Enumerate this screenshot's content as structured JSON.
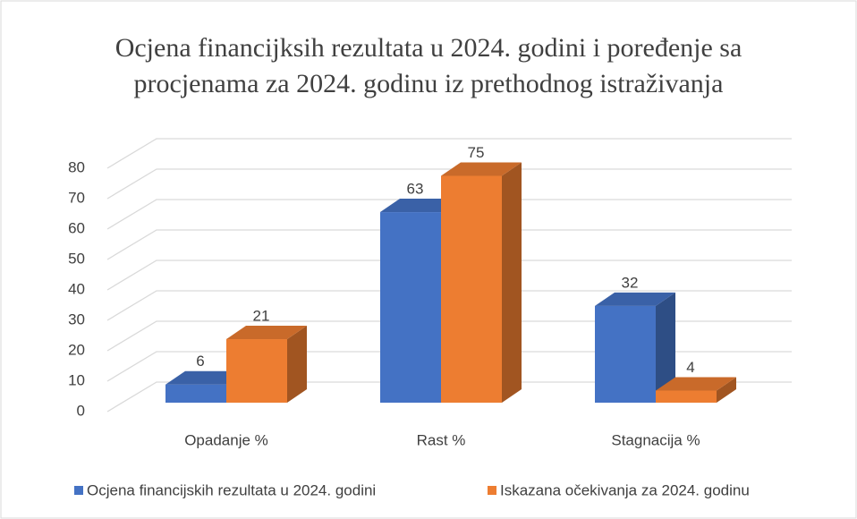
{
  "chart_data": {
    "type": "bar3d",
    "title": [
      "Ocjena financijksih rezultata u 2024. godini i poređenje sa",
      "procjenama za 2024. godinu iz prethodnog istraživanja"
    ],
    "categories": [
      "Opadanje %",
      "Rast %",
      "Stagnacija %"
    ],
    "series": [
      {
        "name": "Ocjena financijskih rezultata u 2024. godini",
        "color": "#4472c4",
        "values": [
          6,
          63,
          32
        ]
      },
      {
        "name": "Iskazana očekivanja za 2024. godinu",
        "color": "#ed7d31",
        "values": [
          21,
          75,
          4
        ]
      }
    ],
    "ylim": [
      0,
      80
    ],
    "yticks": [
      0,
      10,
      20,
      30,
      40,
      50,
      60,
      70,
      80
    ],
    "grid": true,
    "legend": "bottom",
    "data_labels": true
  }
}
